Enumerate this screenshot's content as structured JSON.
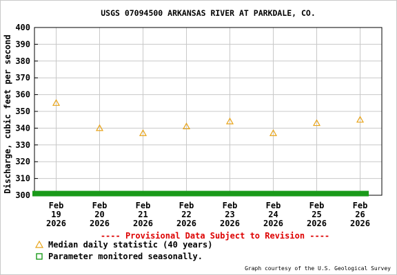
{
  "chart_data": {
    "type": "scatter",
    "title": "USGS 07094500 ARKANSAS RIVER AT PARKDALE, CO.",
    "ylabel": "Discharge, cubic feet per second",
    "xlabel": "",
    "ylim": [
      300,
      400
    ],
    "yticks": [
      300,
      310,
      320,
      330,
      340,
      350,
      360,
      370,
      380,
      390,
      400
    ],
    "grid": true,
    "categories": [
      {
        "month": "Feb",
        "day": "19",
        "year": "2026"
      },
      {
        "month": "Feb",
        "day": "20",
        "year": "2026"
      },
      {
        "month": "Feb",
        "day": "21",
        "year": "2026"
      },
      {
        "month": "Feb",
        "day": "22",
        "year": "2026"
      },
      {
        "month": "Feb",
        "day": "23",
        "year": "2026"
      },
      {
        "month": "Feb",
        "day": "24",
        "year": "2026"
      },
      {
        "month": "Feb",
        "day": "25",
        "year": "2026"
      },
      {
        "month": "Feb",
        "day": "26",
        "year": "2026"
      }
    ],
    "series": [
      {
        "name": "Median daily statistic (40 years)",
        "marker": "triangle",
        "color": "#e8a317",
        "values": [
          355,
          340,
          337,
          341,
          344,
          337,
          343,
          345
        ]
      }
    ],
    "seasonal_bar": {
      "name": "Parameter monitored seasonally.",
      "color": "#1a9a1a",
      "value": 301
    },
    "provisional_note": "---- Provisional Data Subject to Revision ----",
    "provisional_color": "#dd0000",
    "legend": [
      {
        "label": "Median daily statistic (40 years)",
        "symbol": "triangle",
        "color": "#e8a317"
      },
      {
        "label": "Parameter monitored seasonally.",
        "symbol": "square",
        "color": "#1a9a1a"
      }
    ],
    "legend_position": "bottom-left",
    "credit": "Graph courtesy of the U.S. Geological Survey"
  }
}
